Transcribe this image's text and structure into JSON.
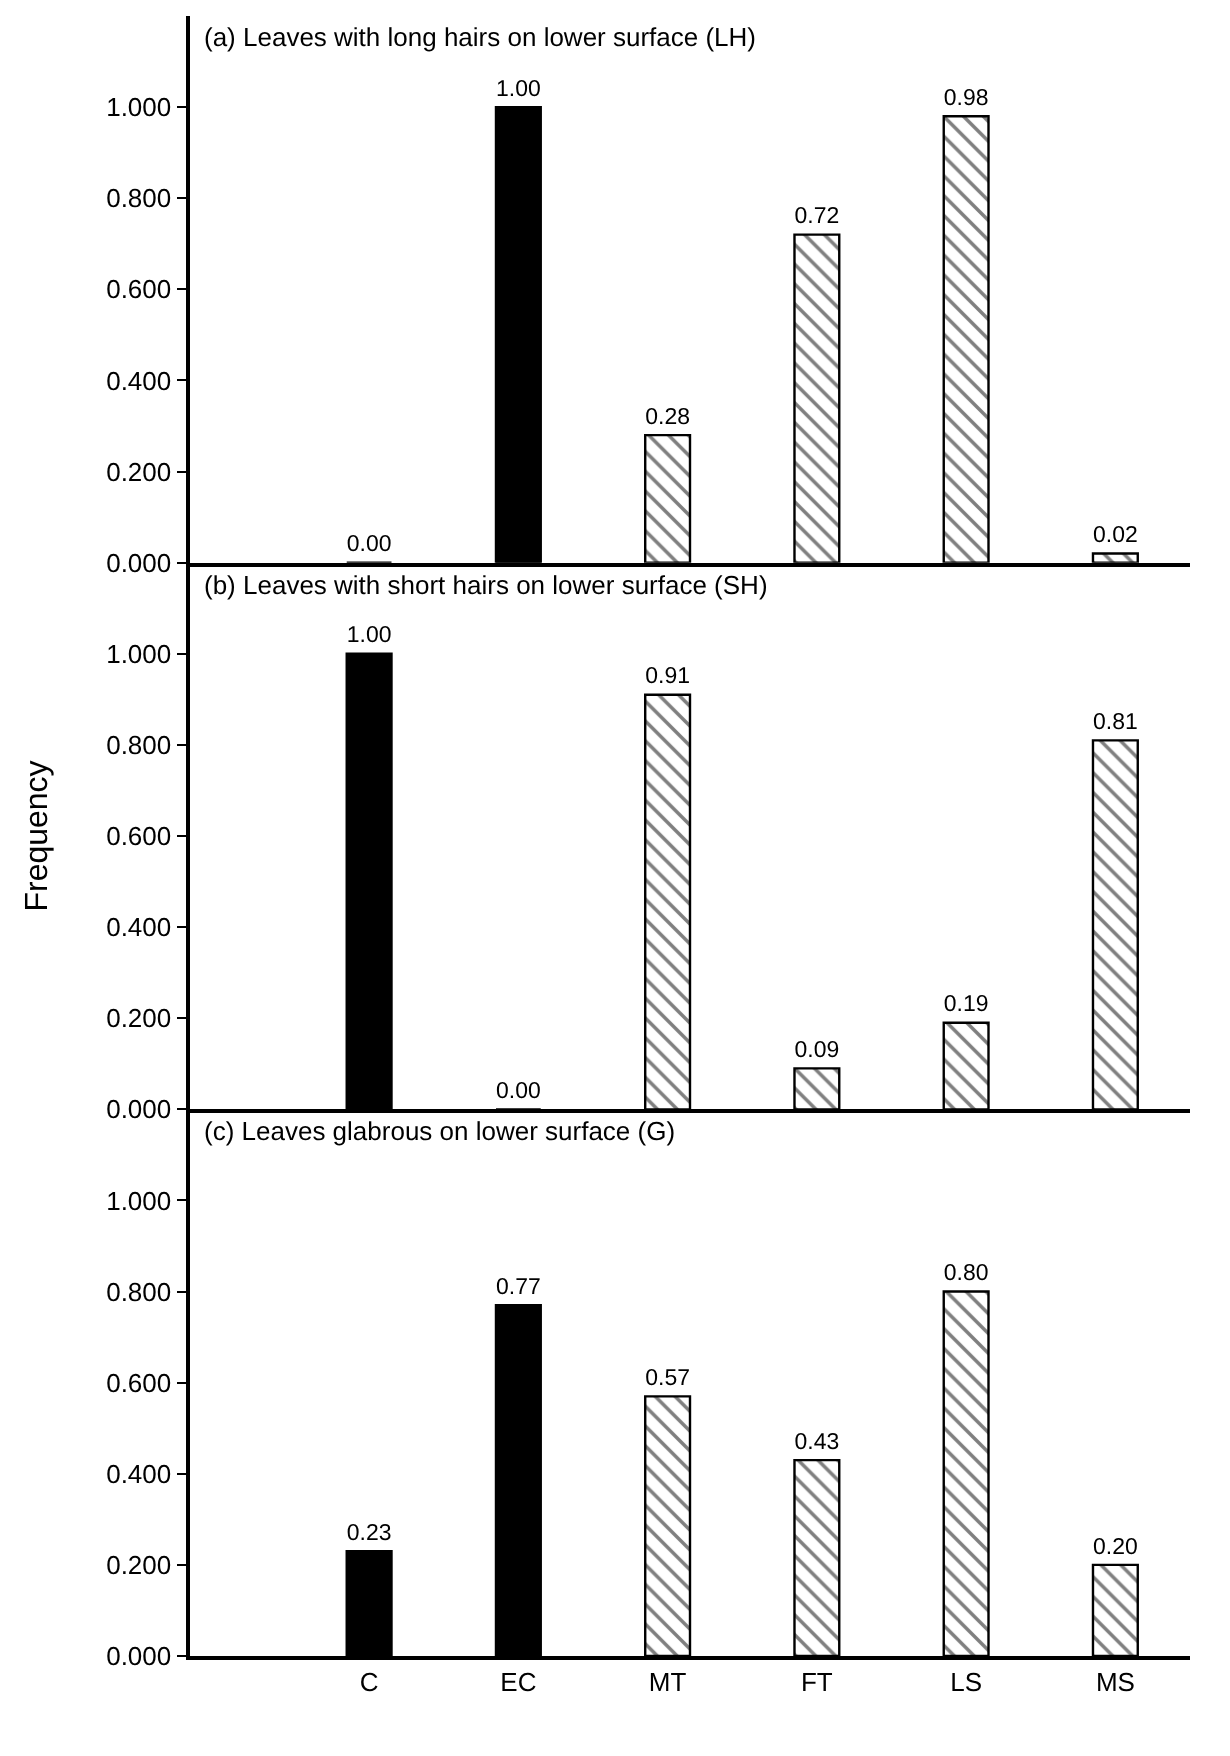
{
  "chart_data": [
    {
      "type": "bar",
      "title": "(a) Leaves with long hairs on lower surface (LH)",
      "categories": [
        "C",
        "EC",
        "MT",
        "FT",
        "LS",
        "MS"
      ],
      "series": [
        {
          "color": "#000000",
          "values": [
            0.0,
            1.0,
            null,
            null,
            null,
            null
          ],
          "value_labels": [
            "0.00",
            "1.00",
            null,
            null,
            null,
            null
          ]
        },
        {
          "color": "#000000",
          "values": [
            null,
            null,
            0.28,
            0.72,
            0.98,
            0.02
          ],
          "value_labels": [
            null,
            null,
            "0.28",
            "0.72",
            "0.98",
            "0.02"
          ]
        }
      ],
      "ylim": [
        0,
        1.2
      ],
      "yticks": [
        {
          "value": 0,
          "label": "0.000"
        },
        {
          "value": 0.2,
          "label": "0.200"
        },
        {
          "value": 0.4,
          "label": "0.400"
        },
        {
          "value": 0.6,
          "label": "0.600"
        },
        {
          "value": 0.8,
          "label": "0.800"
        },
        {
          "value": 1.0,
          "label": "1.000"
        }
      ],
      "tick_labels": "y",
      "grid": false
    },
    {
      "type": "bar",
      "title": "(b) Leaves with short hairs on lower surface (SH)",
      "ylabel": "Frequency",
      "categories": [
        "C",
        "EC",
        "MT",
        "FT",
        "LS",
        "MS"
      ],
      "series": [
        {
          "color": "#000000",
          "values": [
            1.0,
            0.0,
            null,
            null,
            null,
            null
          ],
          "value_labels": [
            "1.00",
            "0.00",
            null,
            null,
            null,
            null
          ]
        },
        {
          "color": "#000000",
          "values": [
            null,
            null,
            0.91,
            0.09,
            0.19,
            0.81
          ],
          "value_labels": [
            null,
            null,
            "0.91",
            "0.09",
            "0.19",
            "0.81"
          ]
        }
      ],
      "ylim": [
        0,
        1.2
      ],
      "yticks": [
        {
          "value": 0,
          "label": "0.000"
        },
        {
          "value": 0.2,
          "label": "0.200"
        },
        {
          "value": 0.4,
          "label": "0.400"
        },
        {
          "value": 0.6,
          "label": "0.600"
        },
        {
          "value": 0.8,
          "label": "0.800"
        },
        {
          "value": 1.0,
          "label": "1.000"
        }
      ],
      "tick_labels": "y",
      "grid": false
    },
    {
      "type": "bar",
      "title": "(c) Leaves glabrous on lower surface (G)",
      "categories": [
        "C",
        "EC",
        "MT",
        "FT",
        "LS",
        "MS"
      ],
      "series": [
        {
          "color": "#000000",
          "values": [
            0.23,
            0.77,
            null,
            null,
            null,
            null
          ],
          "value_labels": [
            "0.23",
            "0.77",
            null,
            null,
            null,
            null
          ]
        },
        {
          "color": "#000000",
          "values": [
            null,
            null,
            0.57,
            0.43,
            0.8,
            0.2
          ],
          "value_labels": [
            null,
            null,
            "0.57",
            "0.43",
            "0.80",
            "0.20"
          ]
        }
      ],
      "ylim": [
        0,
        1.2
      ],
      "yticks": [
        {
          "value": 0,
          "label": "0.000"
        },
        {
          "value": 0.2,
          "label": "0.200"
        },
        {
          "value": 0.4,
          "label": "0.400"
        },
        {
          "value": 0.6,
          "label": "0.600"
        },
        {
          "value": 0.8,
          "label": "0.800"
        },
        {
          "value": 1.0,
          "label": "1.000"
        }
      ],
      "grid": false
    }
  ]
}
